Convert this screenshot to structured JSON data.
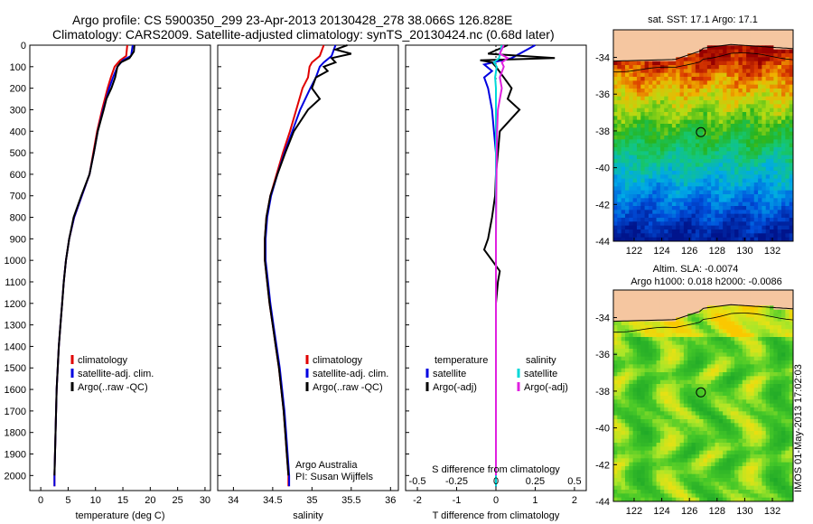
{
  "header": {
    "line1": "Argo profile: CS 5900350_299 23-Apr-2013 20130428_278 38.066S 126.828E",
    "line2": "Climatology: CARS2009. Satellite-adjusted climatology: synTS_20130424.nc (0.68d later)"
  },
  "side_stamp": "IMOS 01-May-2013 17:02:03",
  "colors": {
    "climatology": "#e00000",
    "satellite": "#0000e0",
    "argo": "#000000",
    "cyan": "#00d8d8",
    "magenta": "#e020e0",
    "land": "#f5c6a0"
  },
  "chart_data": [
    {
      "type": "line",
      "title": "",
      "xlabel": "temperature (deg C)",
      "ylabel": "",
      "xlim": [
        -2,
        31
      ],
      "ylim": [
        2070,
        0
      ],
      "xticks": [
        0,
        5,
        10,
        15,
        20,
        25,
        30
      ],
      "yticks": [
        0,
        100,
        200,
        300,
        400,
        500,
        600,
        700,
        800,
        900,
        1000,
        1100,
        1200,
        1300,
        1400,
        1500,
        1600,
        1700,
        1800,
        1900,
        2000
      ],
      "legend_position": "lower-middle",
      "series": [
        {
          "name": "climatology",
          "color": "#e00000",
          "depth": [
            0,
            50,
            70,
            100,
            150,
            200,
            300,
            400,
            500,
            600,
            700,
            800,
            900,
            1000,
            1100,
            1200,
            1300,
            1400,
            1500,
            1600,
            1700,
            1800,
            1900,
            2000,
            2050
          ],
          "values": [
            15.8,
            15.6,
            14.5,
            13.5,
            12.8,
            12.2,
            11.2,
            10.3,
            9.6,
            8.9,
            7.5,
            6.1,
            5.2,
            4.6,
            4.2,
            3.9,
            3.6,
            3.3,
            3.1,
            2.9,
            2.8,
            2.7,
            2.6,
            2.5,
            2.5
          ]
        },
        {
          "name": "satellite-adj. clim.",
          "color": "#0000e0",
          "depth": [
            0,
            50,
            70,
            100,
            150,
            200,
            300,
            400,
            500,
            600,
            700,
            800,
            900,
            1000,
            1100,
            1200,
            1300,
            1400,
            1500,
            1600,
            1700,
            1800,
            1900,
            2000,
            2050
          ],
          "values": [
            16.8,
            16.5,
            15.0,
            14.0,
            13.2,
            12.5,
            11.4,
            10.4,
            9.7,
            8.9,
            7.5,
            6.1,
            5.2,
            4.6,
            4.2,
            3.9,
            3.6,
            3.3,
            3.1,
            2.9,
            2.8,
            2.7,
            2.6,
            2.5,
            2.5
          ]
        },
        {
          "name": "Argo(..raw -QC)",
          "color": "#000000",
          "depth": [
            0,
            30,
            60,
            80,
            100,
            150,
            200,
            250,
            300,
            400,
            500,
            600,
            700,
            800,
            900,
            1000,
            1100,
            1200,
            1300,
            1400,
            1500,
            1600,
            1700,
            1800,
            1900,
            2000
          ],
          "values": [
            17.1,
            17.0,
            16.2,
            14.6,
            14.0,
            13.6,
            12.9,
            12.0,
            11.5,
            10.4,
            9.7,
            8.9,
            7.4,
            6.0,
            5.2,
            4.6,
            4.2,
            3.9,
            3.6,
            3.3,
            3.1,
            2.9,
            2.8,
            2.7,
            2.6,
            2.5
          ]
        }
      ]
    },
    {
      "type": "line",
      "title": "",
      "xlabel": "salinity",
      "ylabel": "",
      "xlim": [
        33.8,
        36.1
      ],
      "ylim": [
        2070,
        0
      ],
      "xticks": [
        34,
        34.5,
        35,
        35.5,
        36
      ],
      "legend_position": "lower-right",
      "annotation": [
        "Argo Australia",
        "PI: Susan Wijffels"
      ],
      "series": [
        {
          "name": "climatology",
          "color": "#e00000",
          "depth": [
            0,
            50,
            80,
            100,
            150,
            200,
            300,
            400,
            500,
            600,
            700,
            800,
            900,
            1000,
            1100,
            1200,
            1300,
            1400,
            1500,
            1600,
            1700,
            1800,
            1900,
            2000,
            2050
          ],
          "values": [
            35.15,
            35.1,
            35.0,
            34.97,
            34.95,
            34.88,
            34.8,
            34.72,
            34.63,
            34.55,
            34.47,
            34.42,
            34.4,
            34.4,
            34.43,
            34.46,
            34.5,
            34.54,
            34.58,
            34.61,
            34.64,
            34.66,
            34.68,
            34.7,
            34.7
          ]
        },
        {
          "name": "satellite-adj. clim.",
          "color": "#0000e0",
          "depth": [
            0,
            50,
            80,
            100,
            150,
            200,
            300,
            400,
            500,
            600,
            700,
            800,
            900,
            1000,
            1100,
            1200,
            1300,
            1400,
            1500,
            1600,
            1700,
            1800,
            1900,
            2000,
            2050
          ],
          "values": [
            35.3,
            35.25,
            35.15,
            35.1,
            35.05,
            34.98,
            34.85,
            34.75,
            34.65,
            34.56,
            34.48,
            34.43,
            34.41,
            34.41,
            34.44,
            34.47,
            34.51,
            34.55,
            34.59,
            34.62,
            34.65,
            34.67,
            34.69,
            34.71,
            34.71
          ]
        },
        {
          "name": "Argo(..raw -QC)",
          "color": "#000000",
          "depth": [
            0,
            20,
            40,
            60,
            80,
            100,
            120,
            150,
            200,
            250,
            300,
            400,
            500,
            600,
            700,
            800,
            900,
            1000,
            1100,
            1200,
            1300,
            1400,
            1500,
            1600,
            1700,
            1800,
            1900,
            2000
          ],
          "values": [
            35.45,
            35.3,
            35.5,
            35.25,
            35.3,
            35.15,
            35.2,
            35.05,
            35.0,
            35.1,
            34.95,
            34.77,
            34.66,
            34.56,
            34.47,
            34.42,
            34.4,
            34.4,
            34.43,
            34.46,
            34.5,
            34.54,
            34.58,
            34.61,
            34.64,
            34.66,
            34.68,
            34.7
          ]
        }
      ]
    },
    {
      "type": "line",
      "title": "",
      "xlabel": "T difference from climatology",
      "xlabel_top": "S difference from climatology",
      "xlim": [
        -2.3,
        2.3
      ],
      "ylim": [
        2070,
        0
      ],
      "xticks": [
        -2,
        -1,
        0,
        1,
        2
      ],
      "xticks_s": [
        -0.5,
        -0.25,
        0,
        0.25,
        0.5
      ],
      "legend_groups": [
        "temperature",
        "salinity"
      ],
      "series": [
        {
          "name": "satellite",
          "group": "temperature",
          "color": "#0000e0",
          "depth": [
            0,
            60,
            90,
            120,
            150,
            200,
            300,
            400,
            500,
            700,
            900,
            1000,
            1200,
            1500,
            2000,
            2050
          ],
          "values": [
            1.0,
            0.4,
            -0.3,
            -0.1,
            -0.3,
            -0.2,
            -0.1,
            -0.05,
            0,
            0,
            0,
            0,
            0,
            0,
            0,
            0
          ]
        },
        {
          "name": "Argo(-adj)",
          "group": "temperature",
          "color": "#000000",
          "depth": [
            0,
            40,
            60,
            70,
            80,
            100,
            150,
            200,
            250,
            300,
            400,
            500,
            600,
            700,
            800,
            900,
            950,
            1000,
            1050,
            1100,
            1200,
            1500,
            2000
          ],
          "values": [
            0.3,
            -0.2,
            1.5,
            -0.4,
            -0.1,
            0,
            0.2,
            0.4,
            0.3,
            0.6,
            0.1,
            0.05,
            0,
            -0.02,
            -0.1,
            -0.2,
            -0.3,
            -0.1,
            0.1,
            0.05,
            0,
            0,
            0
          ]
        },
        {
          "name": "satellite",
          "group": "salinity",
          "color": "#00d8d8",
          "depth": [
            0,
            60,
            80,
            100,
            150,
            200,
            300,
            400,
            500,
            700,
            900,
            1000,
            1200,
            1500,
            2000,
            2050
          ],
          "values": [
            0.15,
            0.08,
            -0.05,
            0.02,
            -0.02,
            0.0,
            0.0,
            0.0,
            0.0,
            0.0,
            0.0,
            0.0,
            0.0,
            0.0,
            0.0,
            0.0
          ]
        },
        {
          "name": "Argo(-adj)",
          "group": "salinity",
          "color": "#e020e0",
          "depth": [
            0,
            40,
            60,
            80,
            100,
            150,
            200,
            300,
            400,
            500,
            700,
            900,
            1000,
            1200,
            1500,
            2000
          ],
          "values": [
            0.2,
            0.1,
            0.3,
            0.15,
            0.2,
            0.1,
            0.15,
            0.05,
            0.03,
            0.02,
            0.01,
            0.0,
            0.0,
            0.0,
            0.0,
            0.0
          ]
        }
      ]
    },
    {
      "type": "heatmap",
      "title": "sat. SST: 17.1 Argo: 17.1",
      "xlim": [
        120.5,
        133.5
      ],
      "ylim": [
        -44,
        -32.5
      ],
      "xticks": [
        122,
        124,
        126,
        128,
        130,
        132
      ],
      "yticks": [
        -44,
        -42,
        -40,
        -38,
        -36,
        -34
      ],
      "marker": {
        "lon": 126.828,
        "lat": -38.066
      }
    },
    {
      "type": "heatmap",
      "title": "Altim. SLA: -0.0074",
      "subtitle": "Argo h1000: 0.018 h2000: -0.0086",
      "xlim": [
        120.5,
        133.5
      ],
      "ylim": [
        -44,
        -32.5
      ],
      "xticks": [
        122,
        124,
        126,
        128,
        130,
        132
      ],
      "yticks": [
        -44,
        -42,
        -40,
        -38,
        -36,
        -34
      ],
      "marker": {
        "lon": 126.828,
        "lat": -38.066
      }
    }
  ]
}
